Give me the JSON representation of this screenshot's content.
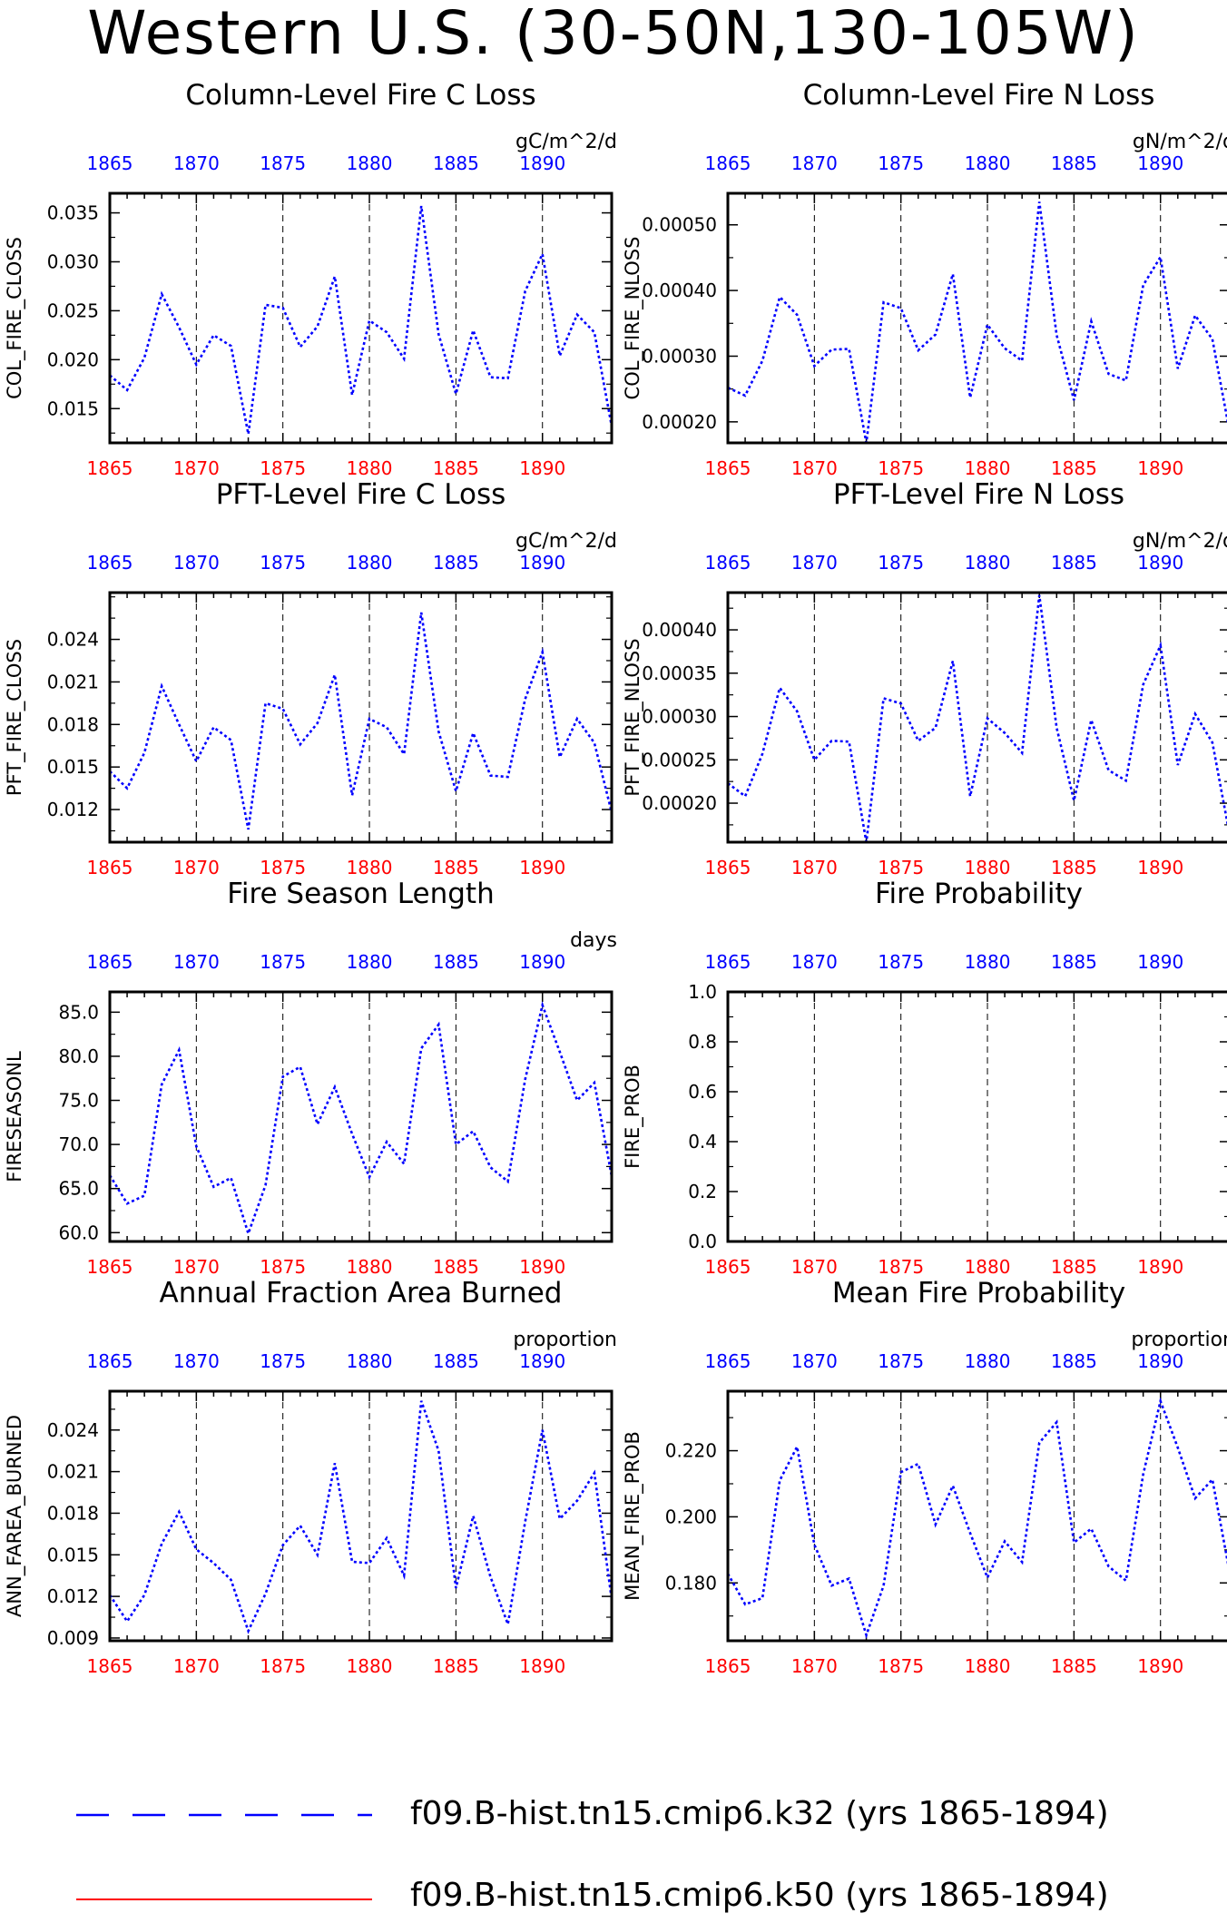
{
  "title": "Western U.S. (30-50N,130-105W)",
  "colors": {
    "series_line": "#0000ff",
    "top_axis_labels": "#0000ff",
    "bottom_axis_labels": "#ff0000",
    "frame": "#000000"
  },
  "legend": [
    {
      "label": "f09.B-hist.tn15.cmip6.k32 (yrs 1865-1894)",
      "color": "#0000ff",
      "style": "dashed"
    },
    {
      "label": "f09.B-hist.tn15.cmip6.k50 (yrs 1865-1894)",
      "color": "#ff0000",
      "style": "solid"
    }
  ],
  "chart_data": [
    {
      "type": "line",
      "title": "Column-Level Fire C Loss",
      "units": "gC/m^2/d",
      "ylabel": "COL_FIRE_CLOSS",
      "xlim": [
        1865,
        1894
      ],
      "ylim": [
        0.0115,
        0.037
      ],
      "yticks": [
        "0.015",
        "0.020",
        "0.025",
        "0.030",
        "0.035"
      ],
      "xticks": [
        "1865",
        "1870",
        "1875",
        "1880",
        "1885",
        "1890"
      ],
      "grid_x": [
        1870,
        1875,
        1880,
        1885,
        1890
      ],
      "x": [
        1865,
        1866,
        1867,
        1868,
        1869,
        1870,
        1871,
        1872,
        1873,
        1874,
        1875,
        1876,
        1877,
        1878,
        1879,
        1880,
        1881,
        1882,
        1883,
        1884,
        1885,
        1886,
        1887,
        1888,
        1889,
        1890,
        1891,
        1892,
        1893,
        1894
      ],
      "series": [
        {
          "values": [
            0.0184,
            0.0169,
            0.0202,
            0.0267,
            0.0233,
            0.0195,
            0.0225,
            0.0214,
            0.0124,
            0.0256,
            0.0253,
            0.0213,
            0.0234,
            0.0285,
            0.0164,
            0.024,
            0.0228,
            0.0201,
            0.0357,
            0.0226,
            0.0165,
            0.023,
            0.0182,
            0.0181,
            0.027,
            0.0308,
            0.0204,
            0.0246,
            0.0228,
            0.0132
          ]
        }
      ]
    },
    {
      "type": "line",
      "title": "Column-Level Fire N Loss",
      "units": "gN/m^2/d",
      "ylabel": "COL_FIRE_NLOSS",
      "xlim": [
        1865,
        1894
      ],
      "ylim": [
        0.000168,
        0.000548
      ],
      "yticks": [
        "0.00020",
        "0.00030",
        "0.00040",
        "0.00050"
      ],
      "xticks": [
        "1865",
        "1870",
        "1875",
        "1880",
        "1885",
        "1890"
      ],
      "grid_x": [
        1870,
        1875,
        1880,
        1885,
        1890
      ],
      "x": [
        1865,
        1866,
        1867,
        1868,
        1869,
        1870,
        1871,
        1872,
        1873,
        1874,
        1875,
        1876,
        1877,
        1878,
        1879,
        1880,
        1881,
        1882,
        1883,
        1884,
        1885,
        1886,
        1887,
        1888,
        1889,
        1890,
        1891,
        1892,
        1893,
        1894
      ],
      "series": [
        {
          "values": [
            0.000252,
            0.00024,
            0.000293,
            0.00039,
            0.000363,
            0.000285,
            0.00031,
            0.000311,
            0.000168,
            0.000382,
            0.000373,
            0.000309,
            0.000333,
            0.000425,
            0.000237,
            0.000348,
            0.000312,
            0.000293,
            0.000535,
            0.000332,
            0.000233,
            0.000353,
            0.000273,
            0.000263,
            0.000408,
            0.000451,
            0.000281,
            0.000362,
            0.000326,
            0.000184
          ]
        }
      ]
    },
    {
      "type": "line",
      "title": "PFT-Level Fire C Loss",
      "units": "gC/m^2/d",
      "ylabel": "PFT_FIRE_CLOSS",
      "xlim": [
        1865,
        1894
      ],
      "ylim": [
        0.0097,
        0.0273
      ],
      "yticks": [
        "0.012",
        "0.015",
        "0.018",
        "0.021",
        "0.024"
      ],
      "xticks": [
        "1865",
        "1870",
        "1875",
        "1880",
        "1885",
        "1890"
      ],
      "grid_x": [
        1870,
        1875,
        1880,
        1885,
        1890
      ],
      "x": [
        1865,
        1866,
        1867,
        1868,
        1869,
        1870,
        1871,
        1872,
        1873,
        1874,
        1875,
        1876,
        1877,
        1878,
        1879,
        1880,
        1881,
        1882,
        1883,
        1884,
        1885,
        1886,
        1887,
        1888,
        1889,
        1890,
        1891,
        1892,
        1893,
        1894
      ],
      "series": [
        {
          "values": [
            0.0147,
            0.0135,
            0.016,
            0.0207,
            0.018,
            0.0154,
            0.0178,
            0.0169,
            0.0106,
            0.0195,
            0.0191,
            0.0166,
            0.0181,
            0.0215,
            0.013,
            0.0184,
            0.0178,
            0.0159,
            0.0259,
            0.0175,
            0.0133,
            0.0174,
            0.0144,
            0.0143,
            0.0198,
            0.0231,
            0.0157,
            0.0184,
            0.0167,
            0.0118
          ]
        }
      ]
    },
    {
      "type": "line",
      "title": "PFT-Level Fire N Loss",
      "units": "gN/m^2/d",
      "ylabel": "PFT_FIRE_NLOSS",
      "xlim": [
        1865,
        1894
      ],
      "ylim": [
        0.000155,
        0.000443
      ],
      "yticks": [
        "0.00020",
        "0.00025",
        "0.00030",
        "0.00035",
        "0.00040"
      ],
      "xticks": [
        "1865",
        "1870",
        "1875",
        "1880",
        "1885",
        "1890"
      ],
      "grid_x": [
        1870,
        1875,
        1880,
        1885,
        1890
      ],
      "x": [
        1865,
        1866,
        1867,
        1868,
        1869,
        1870,
        1871,
        1872,
        1873,
        1874,
        1875,
        1876,
        1877,
        1878,
        1879,
        1880,
        1881,
        1882,
        1883,
        1884,
        1885,
        1886,
        1887,
        1888,
        1889,
        1890,
        1891,
        1892,
        1893,
        1894
      ],
      "series": [
        {
          "values": [
            0.000223,
            0.000208,
            0.000257,
            0.000333,
            0.000306,
            0.00025,
            0.000272,
            0.000271,
            0.000155,
            0.000321,
            0.000315,
            0.000272,
            0.000287,
            0.000364,
            0.000208,
            0.000298,
            0.000281,
            0.000258,
            0.00044,
            0.000287,
            0.000203,
            0.000296,
            0.000238,
            0.000226,
            0.000337,
            0.000382,
            0.000244,
            0.000303,
            0.00027,
            0.000163
          ]
        }
      ]
    },
    {
      "type": "line",
      "title": "Fire Season Length",
      "units": "days",
      "ylabel": "FIRESEASONL",
      "xlim": [
        1865,
        1894
      ],
      "ylim": [
        59.0,
        87.3
      ],
      "yticks": [
        "60.0",
        "65.0",
        "70.0",
        "75.0",
        "80.0",
        "85.0"
      ],
      "xticks": [
        "1865",
        "1870",
        "1875",
        "1880",
        "1885",
        "1890"
      ],
      "grid_x": [
        1870,
        1875,
        1880,
        1885,
        1890
      ],
      "x": [
        1865,
        1866,
        1867,
        1868,
        1869,
        1870,
        1871,
        1872,
        1873,
        1874,
        1875,
        1876,
        1877,
        1878,
        1879,
        1880,
        1881,
        1882,
        1883,
        1884,
        1885,
        1886,
        1887,
        1888,
        1889,
        1890,
        1891,
        1892,
        1893,
        1894
      ],
      "series": [
        {
          "values": [
            66.5,
            63.3,
            64.2,
            76.8,
            80.7,
            69.8,
            65.2,
            66.2,
            59.9,
            65.4,
            77.7,
            78.8,
            72.3,
            76.5,
            71.2,
            66.3,
            70.3,
            67.8,
            80.9,
            83.6,
            70.0,
            71.5,
            67.4,
            65.8,
            77.4,
            85.8,
            80.5,
            75.0,
            77.0,
            66.4
          ]
        }
      ]
    },
    {
      "type": "line",
      "title": "Fire Probability",
      "units": "",
      "ylabel": "FIRE_PROB",
      "xlim": [
        1865,
        1894
      ],
      "ylim": [
        0.0,
        1.0
      ],
      "yticks": [
        "0.0",
        "0.2",
        "0.4",
        "0.6",
        "0.8",
        "1.0"
      ],
      "xticks": [
        "1865",
        "1870",
        "1875",
        "1880",
        "1885",
        "1890"
      ],
      "grid_x": [
        1870,
        1875,
        1880,
        1885,
        1890
      ],
      "x": [],
      "series": []
    },
    {
      "type": "line",
      "title": "Annual Fraction Area Burned",
      "units": "proportion",
      "ylabel": "ANN_FAREA_BURNED",
      "xlim": [
        1865,
        1894
      ],
      "ylim": [
        0.0088,
        0.0268
      ],
      "yticks": [
        "0.009",
        "0.012",
        "0.015",
        "0.018",
        "0.021",
        "0.024"
      ],
      "xticks": [
        "1865",
        "1870",
        "1875",
        "1880",
        "1885",
        "1890"
      ],
      "grid_x": [
        1870,
        1875,
        1880,
        1885,
        1890
      ],
      "x": [
        1865,
        1866,
        1867,
        1868,
        1869,
        1870,
        1871,
        1872,
        1873,
        1874,
        1875,
        1876,
        1877,
        1878,
        1879,
        1880,
        1881,
        1882,
        1883,
        1884,
        1885,
        1886,
        1887,
        1888,
        1889,
        1890,
        1891,
        1892,
        1893,
        1894
      ],
      "series": [
        {
          "values": [
            0.0121,
            0.0102,
            0.0121,
            0.0158,
            0.0181,
            0.0154,
            0.0144,
            0.0132,
            0.0095,
            0.0122,
            0.0157,
            0.0171,
            0.015,
            0.0216,
            0.0145,
            0.0144,
            0.0162,
            0.0135,
            0.0261,
            0.0225,
            0.0126,
            0.0178,
            0.0134,
            0.01,
            0.0174,
            0.024,
            0.0176,
            0.0189,
            0.0209,
            0.0118
          ]
        }
      ]
    },
    {
      "type": "line",
      "title": "Mean Fire Probability",
      "units": "proportion",
      "ylabel": "MEAN_FIRE_PROB",
      "xlim": [
        1865,
        1894
      ],
      "ylim": [
        0.1625,
        0.238
      ],
      "yticks": [
        "0.180",
        "0.200",
        "0.220"
      ],
      "xticks": [
        "1865",
        "1870",
        "1875",
        "1880",
        "1885",
        "1890"
      ],
      "grid_x": [
        1870,
        1875,
        1880,
        1885,
        1890
      ],
      "x": [
        1865,
        1866,
        1867,
        1868,
        1869,
        1870,
        1871,
        1872,
        1873,
        1874,
        1875,
        1876,
        1877,
        1878,
        1879,
        1880,
        1881,
        1882,
        1883,
        1884,
        1885,
        1886,
        1887,
        1888,
        1889,
        1890,
        1891,
        1892,
        1893,
        1894
      ],
      "series": [
        {
          "values": [
            0.1828,
            0.1735,
            0.1754,
            0.211,
            0.2212,
            0.1916,
            0.1792,
            0.1813,
            0.1642,
            0.1792,
            0.2135,
            0.216,
            0.1977,
            0.2094,
            0.1951,
            0.1816,
            0.1926,
            0.1863,
            0.2224,
            0.2286,
            0.1922,
            0.1964,
            0.185,
            0.1807,
            0.2129,
            0.235,
            0.2209,
            0.2056,
            0.2113,
            0.183
          ]
        }
      ]
    }
  ]
}
